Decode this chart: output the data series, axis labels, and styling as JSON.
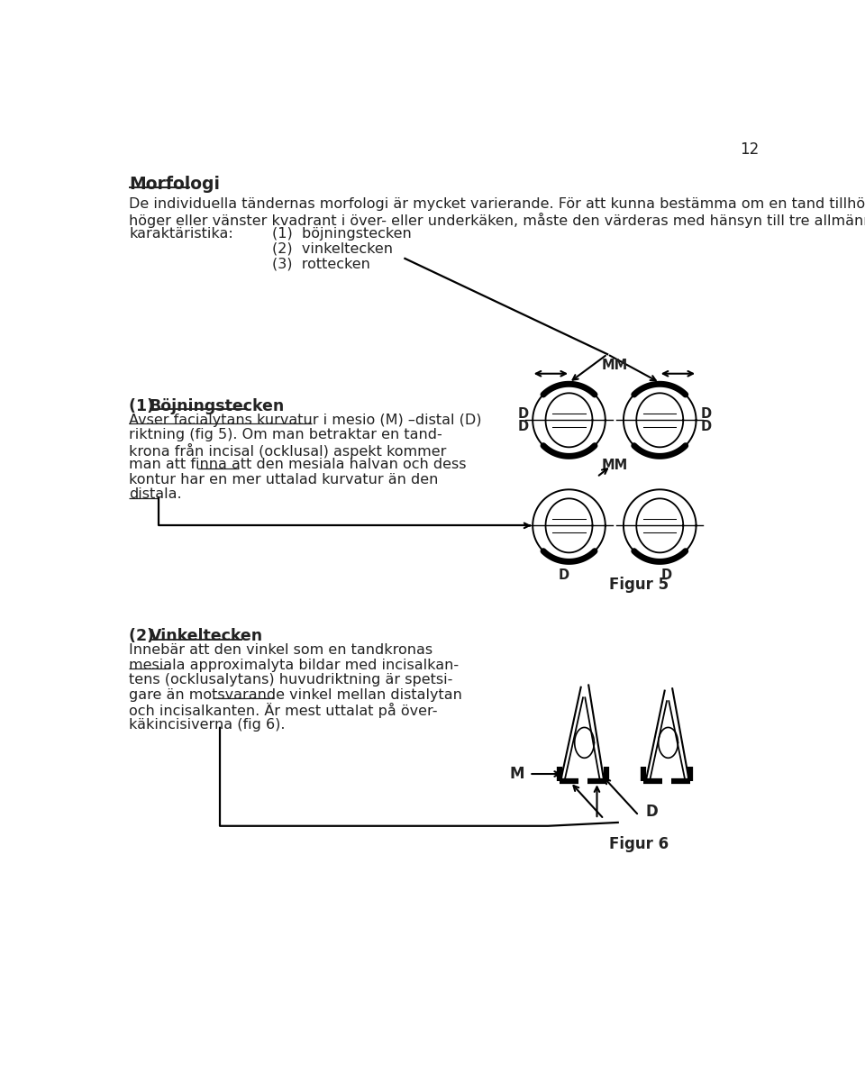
{
  "bg_color": "#ffffff",
  "text_color": "#222222",
  "page_number": "12",
  "title": "Morfologi",
  "line1": "De individuella tändernas morfologi är mycket varierande. För att kunna bestämma om en tand tillhör",
  "line2": "höger eller vänster kvadrant i över- eller underkäken, måste den värderas med hänsyn till tre allmänna",
  "line3": "karaktäristika:",
  "item1": "(1)  böjningstecken",
  "item2": "(2)  vinkeltecken",
  "item3": "(3)  rottecken",
  "s1_heading_pre": "(1) ",
  "s1_heading_word": "Böjningstecken",
  "s1_l1": "Avser facialytans kurvatur i mesio (M) –distal (D)",
  "s1_l2": "riktning (fig 5). Om man betraktar en tand-",
  "s1_l3": "krona från incisal (ocklusal) aspekt kommer",
  "s1_l4": "man att finna att den mesiala halvan och dess",
  "s1_l5": "kontur har en mer uttalad kurvatur än den",
  "s1_l6": "distala.",
  "figur5": "Figur 5",
  "s2_heading_pre": "(2) ",
  "s2_heading_word": "Vinkeltecken",
  "s2_l1": "Innebär att den vinkel som en tandkronas",
  "s2_l2": "mesiala approximalyta bildar med incisalkan-",
  "s2_l3": "tens (ocklusalytans) huvudriktning är spetsi-",
  "s2_l4": "gare än motsvarande vinkel mellan distalytan",
  "s2_l5": "och incisalkanten. Är mest uttalat på över-",
  "s2_l6": "käkincisiverna (fig 6).",
  "figur6": "Figur 6",
  "label_M": "M",
  "label_D": "D",
  "label_MM": "MM",
  "label_DD_left_top": "D",
  "label_DD_left_bot": "D",
  "label_DD_right_top": "D",
  "label_DD_right_bot": "D"
}
